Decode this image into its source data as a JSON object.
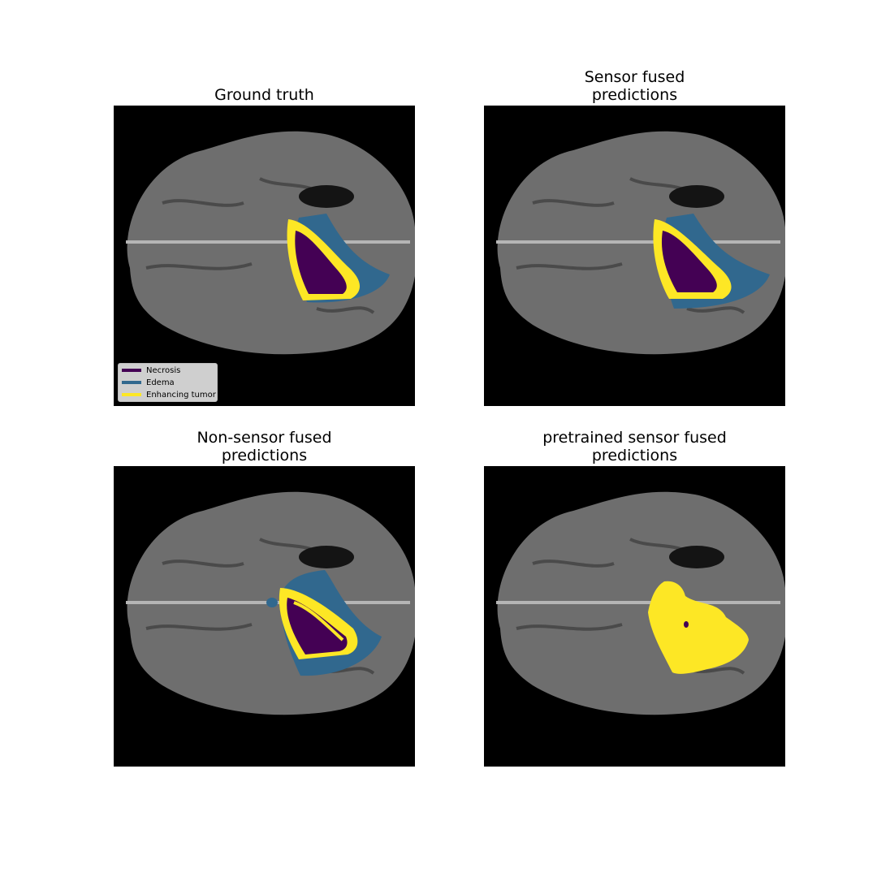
{
  "panels": [
    {
      "id": "gt",
      "title": "Ground truth",
      "segmentation": "necrosis core, enhancing tumor rim, edema"
    },
    {
      "id": "sf",
      "title": "Sensor fused\npredictions",
      "segmentation": "necrosis core, enhancing tumor rim, edema"
    },
    {
      "id": "nsf",
      "title": "Non-sensor fused\npredictions",
      "segmentation": "necrosis and enhancing tumor mixed, edema"
    },
    {
      "id": "psf",
      "title": "pretrained sensor fused\npredictions",
      "segmentation": "enhancing tumor only"
    }
  ],
  "legend": {
    "items": [
      {
        "label": "Necrosis",
        "color": "#440154"
      },
      {
        "label": "Edema",
        "color": "#31688e"
      },
      {
        "label": "Enhancing tumor",
        "color": "#fde725"
      }
    ]
  },
  "colors": {
    "necrosis": "#440154",
    "edema": "#31688e",
    "enhancing_tumor": "#fde725",
    "background": "#000000",
    "brain": "#6e6e6e"
  }
}
